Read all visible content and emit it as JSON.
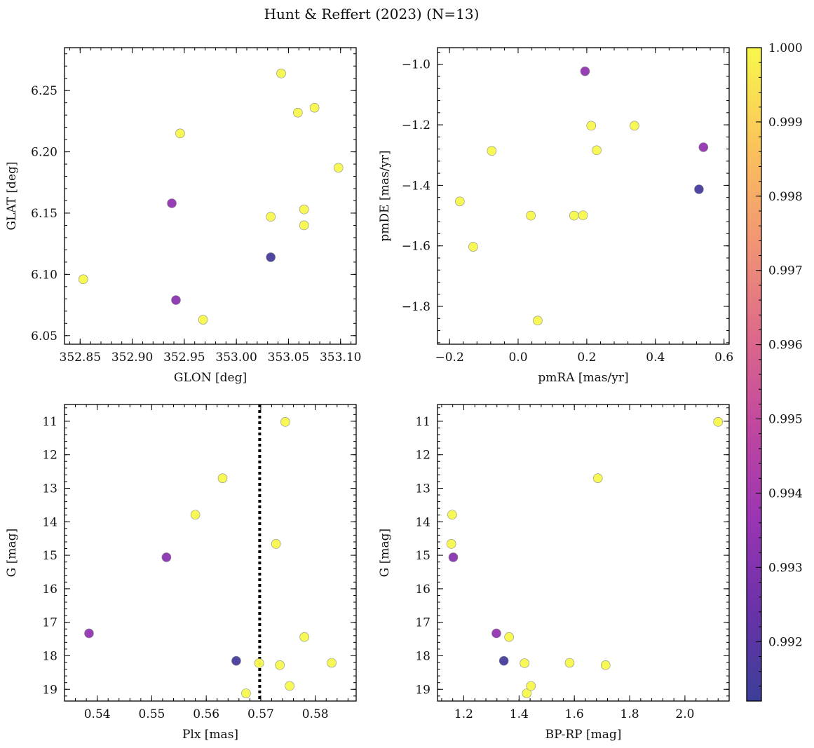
{
  "title": "Hunt & Reffert (2023) (N=13)",
  "colorbar": {
    "min": 0.9912,
    "max": 1.0,
    "ticks": [
      0.992,
      0.993,
      0.994,
      0.995,
      0.996,
      0.997,
      0.998,
      0.999,
      1.0
    ],
    "tick_labels": [
      "0.992",
      "0.993",
      "0.994",
      "0.995",
      "0.996",
      "0.997",
      "0.998",
      "0.999",
      "1.000"
    ],
    "colormap": "plasma"
  },
  "chart_data": [
    {
      "type": "scatter",
      "panel": "top-left",
      "xlabel": "GLON [deg]",
      "ylabel": "GLAT [deg]",
      "xlim": [
        352.835,
        353.115
      ],
      "ylim": [
        6.043,
        6.285
      ],
      "invert_y": false,
      "xticks": [
        352.85,
        352.9,
        352.95,
        353.0,
        353.05,
        353.1
      ],
      "xtick_labels": [
        "352.85",
        "352.90",
        "352.95",
        "353.00",
        "353.05",
        "353.10"
      ],
      "yticks": [
        6.05,
        6.1,
        6.15,
        6.2,
        6.25
      ],
      "ytick_labels": [
        "6.05",
        "6.10",
        "6.15",
        "6.20",
        "6.25"
      ],
      "points": [
        {
          "x": 352.853,
          "y": 6.096,
          "c": 1.0
        },
        {
          "x": 352.938,
          "y": 6.158,
          "c": 0.9935
        },
        {
          "x": 352.946,
          "y": 6.215,
          "c": 1.0
        },
        {
          "x": 352.942,
          "y": 6.079,
          "c": 0.9932
        },
        {
          "x": 352.968,
          "y": 6.063,
          "c": 1.0
        },
        {
          "x": 353.033,
          "y": 6.147,
          "c": 1.0
        },
        {
          "x": 353.033,
          "y": 6.114,
          "c": 0.9915
        },
        {
          "x": 353.043,
          "y": 6.264,
          "c": 1.0
        },
        {
          "x": 353.059,
          "y": 6.232,
          "c": 1.0
        },
        {
          "x": 353.065,
          "y": 6.153,
          "c": 1.0
        },
        {
          "x": 353.065,
          "y": 6.14,
          "c": 1.0
        },
        {
          "x": 353.075,
          "y": 6.236,
          "c": 1.0
        },
        {
          "x": 353.098,
          "y": 6.187,
          "c": 1.0
        }
      ]
    },
    {
      "type": "scatter",
      "panel": "top-right",
      "xlabel": "pmRA [mas/yr]",
      "ylabel": "pmDE [mas/yr]",
      "xlim": [
        -0.235,
        0.615
      ],
      "ylim": [
        -1.925,
        -0.945
      ],
      "invert_y": false,
      "xticks": [
        -0.2,
        0.0,
        0.2,
        0.4,
        0.6
      ],
      "xtick_labels": [
        "−0.2",
        "0.0",
        "0.2",
        "0.4",
        "0.6"
      ],
      "yticks": [
        -1.8,
        -1.6,
        -1.4,
        -1.2,
        -1.0
      ],
      "ytick_labels": [
        "−1.8",
        "−1.6",
        "−1.4",
        "−1.2",
        "−1.0"
      ],
      "points": [
        {
          "x": -0.17,
          "y": -1.453,
          "c": 1.0
        },
        {
          "x": -0.131,
          "y": -1.603,
          "c": 1.0
        },
        {
          "x": -0.077,
          "y": -1.286,
          "c": 1.0
        },
        {
          "x": 0.037,
          "y": -1.5,
          "c": 1.0
        },
        {
          "x": 0.057,
          "y": -1.847,
          "c": 1.0
        },
        {
          "x": 0.163,
          "y": -1.5,
          "c": 1.0
        },
        {
          "x": 0.189,
          "y": -1.499,
          "c": 1.0
        },
        {
          "x": 0.195,
          "y": -1.023,
          "c": 0.9935
        },
        {
          "x": 0.213,
          "y": -1.203,
          "c": 1.0
        },
        {
          "x": 0.229,
          "y": -1.284,
          "c": 1.0
        },
        {
          "x": 0.339,
          "y": -1.203,
          "c": 1.0
        },
        {
          "x": 0.527,
          "y": -1.413,
          "c": 0.9915
        },
        {
          "x": 0.54,
          "y": -1.274,
          "c": 0.9935
        }
      ]
    },
    {
      "type": "scatter",
      "panel": "bottom-left",
      "xlabel": "Plx [mas]",
      "ylabel": "G [mag]",
      "xlim": [
        0.534,
        0.5875
      ],
      "ylim": [
        10.5,
        19.35
      ],
      "invert_y": true,
      "xticks": [
        0.54,
        0.55,
        0.56,
        0.57,
        0.58
      ],
      "xtick_labels": [
        "0.54",
        "0.55",
        "0.56",
        "0.57",
        "0.58"
      ],
      "yticks": [
        11,
        12,
        13,
        14,
        15,
        16,
        17,
        18,
        19
      ],
      "ytick_labels": [
        "11",
        "12",
        "13",
        "14",
        "15",
        "16",
        "17",
        "18",
        "19"
      ],
      "vline": 0.5698,
      "points": [
        {
          "x": 0.5385,
          "y": 17.33,
          "c": 0.9935
        },
        {
          "x": 0.5527,
          "y": 15.06,
          "c": 0.9932
        },
        {
          "x": 0.558,
          "y": 13.79,
          "c": 1.0
        },
        {
          "x": 0.563,
          "y": 12.7,
          "c": 1.0
        },
        {
          "x": 0.5655,
          "y": 18.15,
          "c": 0.9915
        },
        {
          "x": 0.5673,
          "y": 19.12,
          "c": 1.0
        },
        {
          "x": 0.5697,
          "y": 18.22,
          "c": 1.0
        },
        {
          "x": 0.5728,
          "y": 14.66,
          "c": 1.0
        },
        {
          "x": 0.5735,
          "y": 18.28,
          "c": 1.0
        },
        {
          "x": 0.5745,
          "y": 11.02,
          "c": 1.0
        },
        {
          "x": 0.5753,
          "y": 18.9,
          "c": 1.0
        },
        {
          "x": 0.578,
          "y": 17.44,
          "c": 1.0
        },
        {
          "x": 0.583,
          "y": 18.21,
          "c": 1.0
        }
      ]
    },
    {
      "type": "scatter",
      "panel": "bottom-right",
      "xlabel": "BP-RP [mag]",
      "ylabel": "G [mag]",
      "xlim": [
        1.105,
        2.16
      ],
      "ylim": [
        10.5,
        19.35
      ],
      "invert_y": true,
      "xticks": [
        1.2,
        1.4,
        1.6,
        1.8,
        2.0
      ],
      "xtick_labels": [
        "1.2",
        "1.4",
        "1.6",
        "1.8",
        "2.0"
      ],
      "yticks": [
        11,
        12,
        13,
        14,
        15,
        16,
        17,
        18,
        19
      ],
      "ytick_labels": [
        "11",
        "12",
        "13",
        "14",
        "15",
        "16",
        "17",
        "18",
        "19"
      ],
      "points": [
        {
          "x": 1.155,
          "y": 14.66,
          "c": 1.0
        },
        {
          "x": 1.158,
          "y": 13.79,
          "c": 1.0
        },
        {
          "x": 1.162,
          "y": 15.06,
          "c": 0.9932
        },
        {
          "x": 1.318,
          "y": 17.33,
          "c": 0.9935
        },
        {
          "x": 1.345,
          "y": 18.15,
          "c": 0.9915
        },
        {
          "x": 1.364,
          "y": 17.44,
          "c": 1.0
        },
        {
          "x": 1.42,
          "y": 18.22,
          "c": 1.0
        },
        {
          "x": 1.428,
          "y": 19.12,
          "c": 1.0
        },
        {
          "x": 1.443,
          "y": 18.9,
          "c": 1.0
        },
        {
          "x": 1.583,
          "y": 18.21,
          "c": 1.0
        },
        {
          "x": 1.685,
          "y": 12.7,
          "c": 1.0
        },
        {
          "x": 1.713,
          "y": 18.28,
          "c": 1.0
        },
        {
          "x": 2.12,
          "y": 11.02,
          "c": 1.0
        }
      ]
    }
  ]
}
